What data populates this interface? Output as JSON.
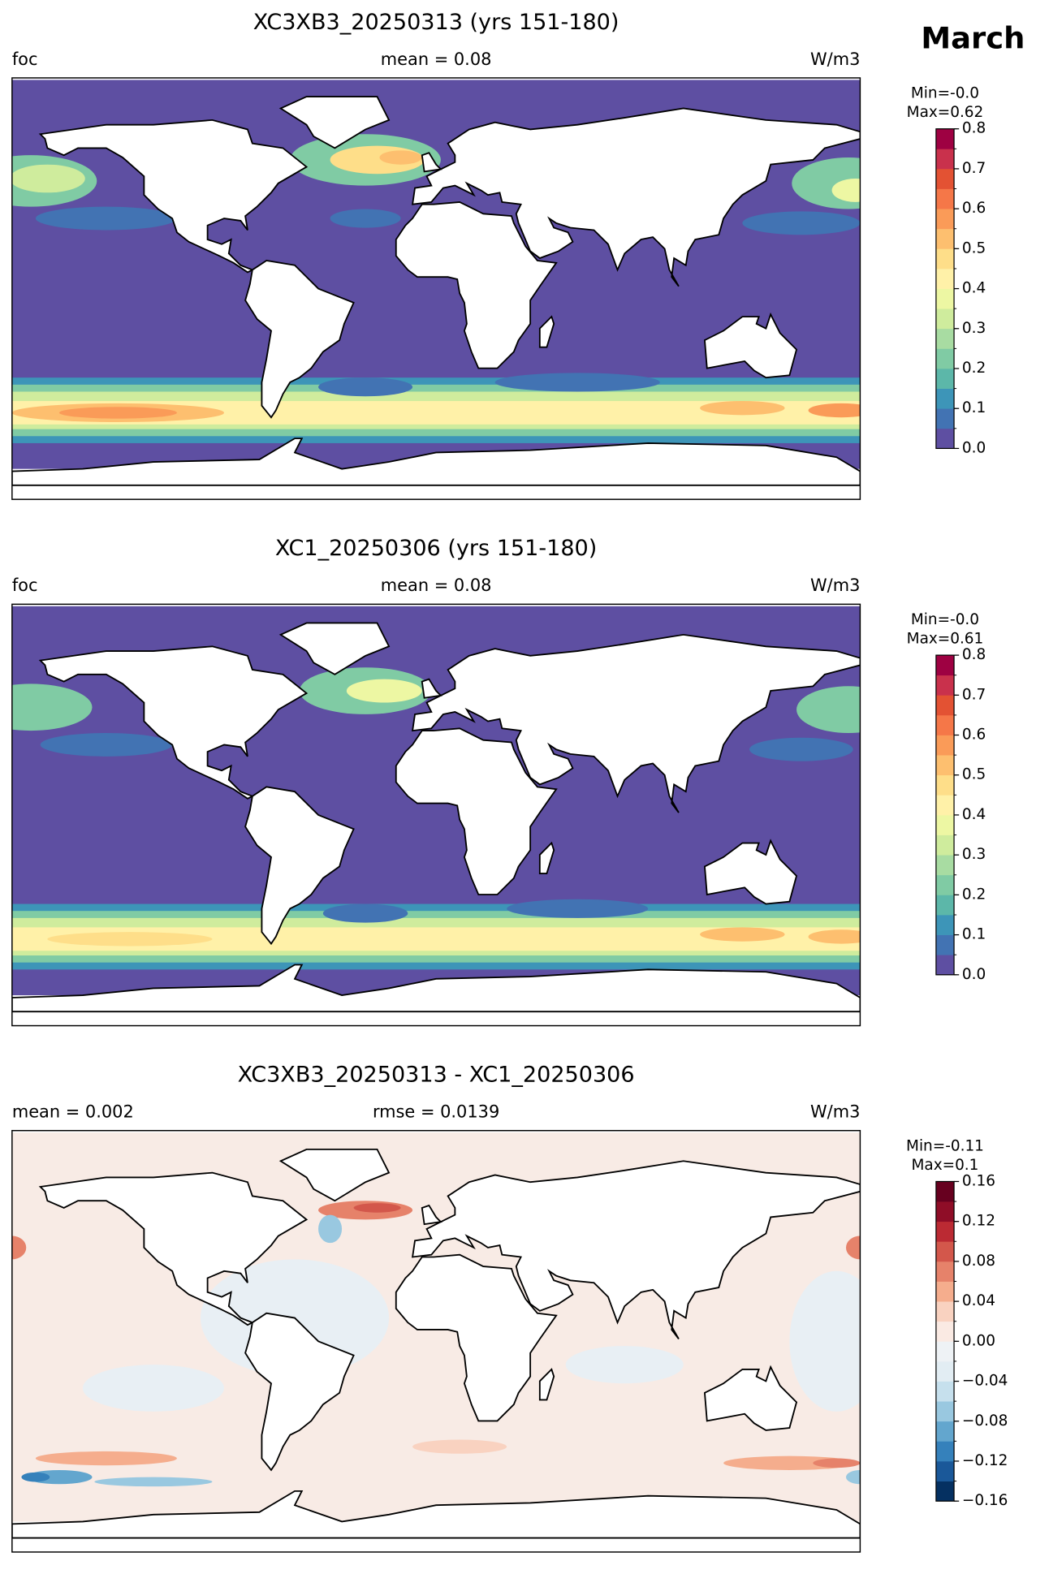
{
  "title": "March",
  "panels": [
    {
      "title": "XC3XB3_20250313 (yrs 151-180)",
      "left": "foc",
      "center": "mean = 0.08",
      "right": "W/m3",
      "colorbar": {
        "min_label": "Min=-0.0",
        "max_label": "Max=0.62",
        "levels": [
          0,
          0.05,
          0.1,
          0.15,
          0.2,
          0.25,
          0.3,
          0.35,
          0.4,
          0.45,
          0.5,
          0.55,
          0.6,
          0.65,
          0.7,
          0.75,
          0.8
        ],
        "colors": [
          "#5e4fa2",
          "#4273b3",
          "#3d95b8",
          "#5cb7a9",
          "#80cba4",
          "#a8dca2",
          "#cfec9d",
          "#edf7a3",
          "#fff1a8",
          "#fede89",
          "#fdbf6f",
          "#fa9b58",
          "#f57748",
          "#e35233",
          "#c9314c",
          "#9e0142"
        ],
        "ticks": [
          {
            "value": 0,
            "label": "0.0"
          },
          0.1,
          0.2,
          0.3,
          0.4,
          0.5,
          0.6,
          0.7,
          0.8
        ]
      }
    },
    {
      "title": "XC1_20250306 (yrs 151-180)",
      "left": "foc",
      "center": "mean = 0.08",
      "right": "W/m3",
      "colorbar": {
        "min_label": "Min=-0.0",
        "max_label": "Max=0.61",
        "levels": [
          0,
          0.05,
          0.1,
          0.15,
          0.2,
          0.25,
          0.3,
          0.35,
          0.4,
          0.45,
          0.5,
          0.55,
          0.6,
          0.65,
          0.7,
          0.75,
          0.8
        ],
        "colors": [
          "#5e4fa2",
          "#4273b3",
          "#3d95b8",
          "#5cb7a9",
          "#80cba4",
          "#a8dca2",
          "#cfec9d",
          "#edf7a3",
          "#fff1a8",
          "#fede89",
          "#fdbf6f",
          "#fa9b58",
          "#f57748",
          "#e35233",
          "#c9314c",
          "#9e0142"
        ],
        "ticks": [
          {
            "value": 0,
            "label": "0.0"
          },
          0.1,
          0.2,
          0.3,
          0.4,
          0.5,
          0.6,
          0.7,
          0.8
        ]
      }
    },
    {
      "title": "XC3XB3_20250313 - XC1_20250306",
      "left": "mean = 0.002",
      "center": "rmse = 0.0139",
      "right": "W/m3",
      "colorbar": {
        "min_label": "Min=-0.11",
        "max_label": "Max=0.1",
        "levels": [
          -0.16,
          -0.14,
          -0.12,
          -0.1,
          -0.08,
          -0.06,
          -0.04,
          -0.02,
          0,
          0.02,
          0.04,
          0.06,
          0.08,
          0.1,
          0.12,
          0.14,
          0.16
        ],
        "colors": [
          "#053061",
          "#1a5899",
          "#3581bb",
          "#63a6ce",
          "#99c8e0",
          "#c6e0ed",
          "#e2edf3",
          "#eef2f5",
          "#faeae3",
          "#f9d2c0",
          "#f5ad8d",
          "#e6826a",
          "#d3574b",
          "#bb2a33",
          "#8f0d27",
          "#67001f"
        ],
        "ticks": [
          {
            "value": -0.16,
            "label": "−0.16"
          },
          {
            "value": -0.12,
            "label": "−0.12"
          },
          {
            "value": -0.08,
            "label": "−0.08"
          },
          {
            "value": -0.04,
            "label": "−0.04"
          },
          {
            "value": 0,
            "label": "0.00"
          },
          0.04,
          0.08,
          0.12,
          0.16
        ]
      }
    }
  ]
}
